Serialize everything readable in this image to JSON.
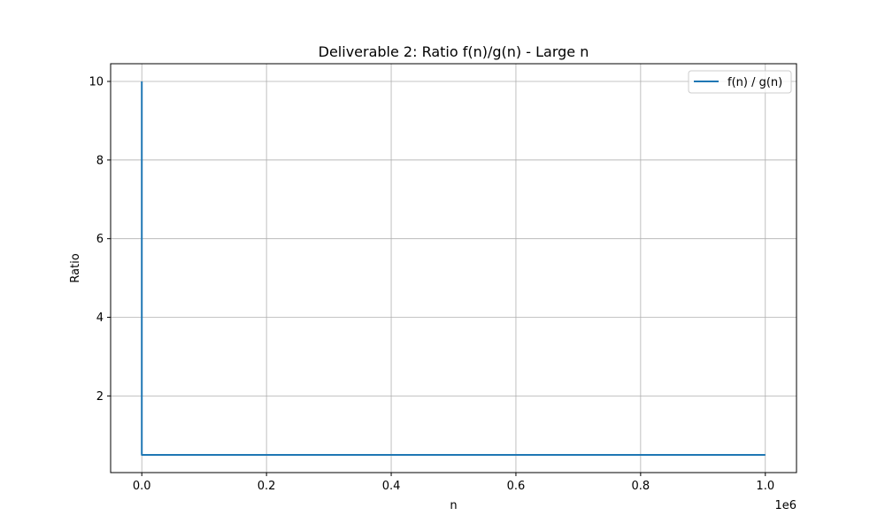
{
  "chart_data": {
    "type": "line",
    "title": "Deliverable 2: Ratio f(n)/g(n) - Large n",
    "xlabel": "n",
    "ylabel": "Ratio",
    "x_offset_label": "1e6",
    "xlim": [
      -0.05,
      1.05
    ],
    "ylim": [
      0.05,
      10.45
    ],
    "x_ticks": [
      0.0,
      0.2,
      0.4,
      0.6,
      0.8,
      1.0
    ],
    "x_tick_labels": [
      "0.0",
      "0.2",
      "0.4",
      "0.6",
      "0.8",
      "1.0"
    ],
    "y_ticks": [
      2,
      4,
      6,
      8,
      10
    ],
    "y_tick_labels": [
      "2",
      "4",
      "6",
      "8",
      "10"
    ],
    "grid": true,
    "legend_position": "top-right",
    "series": [
      {
        "name": "f(n) / g(n)",
        "color": "#1f77b4",
        "x": [
          1e-06,
          1e-05,
          0.0001,
          0.001,
          0.01,
          0.1,
          0.2,
          0.4,
          0.6,
          0.8,
          1.0
        ],
        "y": [
          10,
          0.5,
          0.5,
          0.5,
          0.5,
          0.5,
          0.5,
          0.5,
          0.5,
          0.5,
          0.5
        ]
      }
    ]
  }
}
